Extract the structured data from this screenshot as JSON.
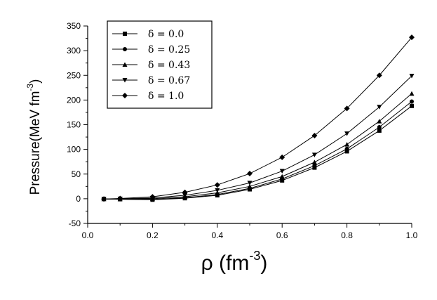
{
  "chart_data": {
    "type": "line",
    "title": "",
    "xlabel": "ρ (fm",
    "xlabel_sup": "-3",
    "xlabel_close": ")",
    "ylabel": "Pressure(MeV fm",
    "ylabel_sup": "-3",
    "ylabel_close": ")",
    "xlim": [
      0.0,
      1.0
    ],
    "ylim": [
      -50,
      350
    ],
    "xticks": [
      0.0,
      0.2,
      0.4,
      0.6,
      0.8,
      1.0
    ],
    "xtick_labels": [
      "0.0",
      "0.2",
      "0.4",
      "0.6",
      "0.8",
      "1.0"
    ],
    "yticks": [
      -50,
      0,
      50,
      100,
      150,
      200,
      250,
      300,
      350
    ],
    "ytick_labels": [
      "-50",
      "0",
      "50",
      "100",
      "150",
      "200",
      "250",
      "300",
      "350"
    ],
    "grid": false,
    "legend_position": "top-left",
    "x": [
      0.05,
      0.1,
      0.2,
      0.3,
      0.4,
      0.5,
      0.6,
      0.7,
      0.8,
      0.9,
      1.0
    ],
    "series": [
      {
        "name": "δ = 0.0",
        "marker": "square",
        "values": [
          -0.5,
          -1,
          -2,
          1,
          7,
          19,
          37,
          63,
          96,
          138,
          188
        ]
      },
      {
        "name": "δ = 0.25",
        "marker": "circle",
        "values": [
          -0.5,
          -1,
          -1.5,
          2,
          8.5,
          21,
          40,
          67,
          101,
          145,
          197
        ]
      },
      {
        "name": "δ = 0.43",
        "marker": "triangle-up",
        "values": [
          -0.5,
          -0.5,
          0,
          4,
          12,
          25,
          45,
          74,
          110,
          157,
          213
        ]
      },
      {
        "name": "δ = 0.67",
        "marker": "triangle-down",
        "values": [
          -0.5,
          0,
          1.5,
          7,
          17,
          32,
          56,
          89,
          132,
          186,
          249
        ]
      },
      {
        "name": "δ = 1.0",
        "marker": "diamond",
        "values": [
          -0.5,
          0.5,
          4,
          13,
          28,
          51,
          84,
          128,
          183,
          250,
          327
        ]
      }
    ]
  }
}
